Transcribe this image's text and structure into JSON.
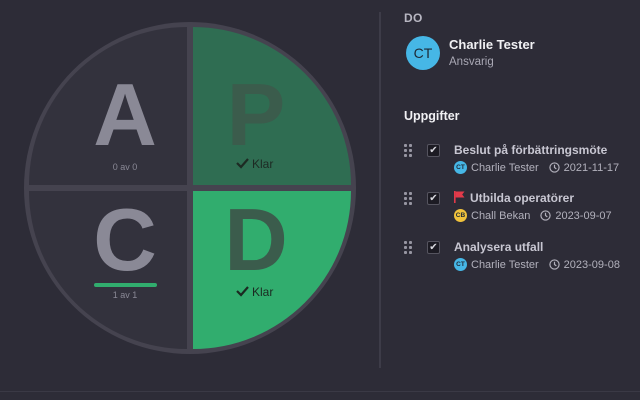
{
  "pdca": {
    "quadrants": [
      {
        "id": "a",
        "letter": "A",
        "status": "0 av 0",
        "active": false
      },
      {
        "id": "p",
        "letter": "P",
        "status": "Klar",
        "active": true
      },
      {
        "id": "c",
        "letter": "C",
        "status": "1 av 1",
        "active": false,
        "progress": 1.0
      },
      {
        "id": "d",
        "letter": "D",
        "status": "Klar",
        "active": true
      }
    ],
    "colors": {
      "ring": "#45434f",
      "inactive": "#33323d",
      "p_fill": "#2f6d52",
      "d_fill": "#31ad6e",
      "letter_inactive": "#8a8996",
      "letter_active": "#3b5c4c",
      "progress": "#31ad6e"
    }
  },
  "detail": {
    "section": "DO",
    "owner": {
      "initials": "CT",
      "name": "Charlie Tester",
      "role": "Ansvarig",
      "color": "#46b7e6"
    },
    "tasks_title": "Uppgifter",
    "tasks": [
      {
        "title": "Beslut på förbättringsmöte",
        "flag": false,
        "assignee_initials": "CT",
        "assignee": "Charlie Tester",
        "assignee_color": "#46b7e6",
        "date": "2021-11-17",
        "checked": true
      },
      {
        "title": "Utbilda operatörer",
        "flag": true,
        "assignee_initials": "CB",
        "assignee": "Chall Bekan",
        "assignee_color": "#f0c23c",
        "date": "2023-09-07",
        "checked": true
      },
      {
        "title": "Analysera utfall",
        "flag": false,
        "assignee_initials": "CT",
        "assignee": "Charlie Tester",
        "assignee_color": "#46b7e6",
        "date": "2023-09-08",
        "checked": true
      }
    ],
    "flag_color": "#e23a4a"
  }
}
